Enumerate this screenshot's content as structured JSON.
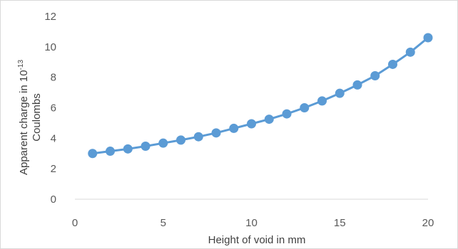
{
  "chart_data": {
    "type": "scatter",
    "title": "",
    "xlabel": "Height of void in mm",
    "ylabel": {
      "line1_prefix": "Apparent charge in 10",
      "line1_superscript": "-13",
      "line2": "Coulombs"
    },
    "xlim": [
      0,
      20
    ],
    "ylim": [
      0,
      12
    ],
    "x_ticks": [
      "0",
      "5",
      "10",
      "15",
      "20"
    ],
    "y_ticks": [
      "0",
      "2",
      "4",
      "6",
      "8",
      "10",
      "12"
    ],
    "grid": false,
    "legend": "none",
    "series": [
      {
        "x": [
          1,
          2,
          3,
          4,
          5,
          6,
          7,
          8,
          9,
          10,
          11,
          12,
          13,
          14,
          15,
          16,
          17,
          18,
          19,
          20
        ],
        "y": [
          3.0,
          3.15,
          3.3,
          3.48,
          3.68,
          3.88,
          4.1,
          4.35,
          4.65,
          4.95,
          5.25,
          5.6,
          6.0,
          6.45,
          6.95,
          7.5,
          8.1,
          8.85,
          9.65,
          10.6
        ],
        "color": "#5b9bd5"
      }
    ]
  }
}
